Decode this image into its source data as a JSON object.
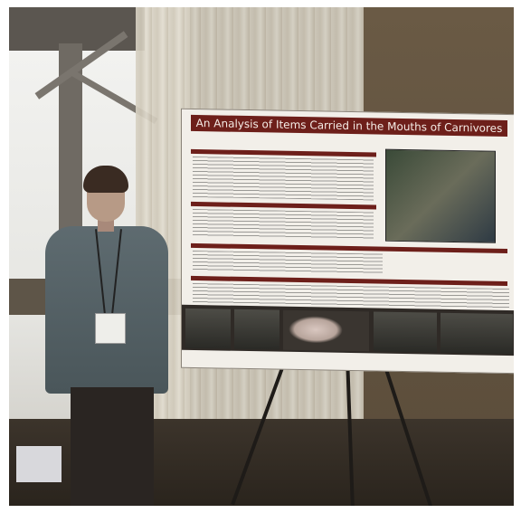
{
  "poster": {
    "title": "An Analysis of Items Carried in the Mouths of Carnivores"
  }
}
